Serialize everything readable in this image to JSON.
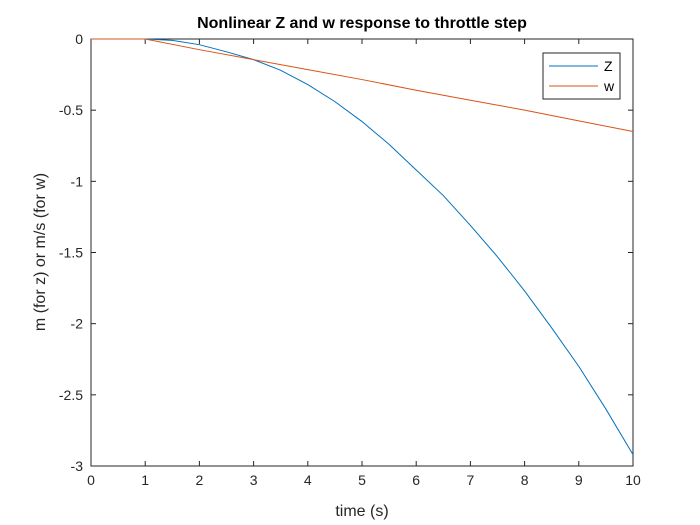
{
  "chart_data": {
    "type": "line",
    "title": "Nonlinear Z and w response to throttle step",
    "xlabel": "time (s)",
    "ylabel": "m (for z) or m/s (for w)",
    "xlim": [
      0,
      10
    ],
    "ylim": [
      -3,
      0
    ],
    "xticks": [
      0,
      1,
      2,
      3,
      4,
      5,
      6,
      7,
      8,
      9,
      10
    ],
    "xtick_labels": [
      "0",
      "1",
      "2",
      "3",
      "4",
      "5",
      "6",
      "7",
      "8",
      "9",
      "10"
    ],
    "yticks": [
      0,
      -0.5,
      -1,
      -1.5,
      -2,
      -2.5,
      -3
    ],
    "ytick_labels": [
      "0",
      "-0.5",
      "-1",
      "-1.5",
      "-2",
      "-2.5",
      "-3"
    ],
    "grid": false,
    "legend_position": "top-right",
    "series": [
      {
        "name": "Z",
        "color": "#0072BD",
        "x": [
          0,
          1,
          1.5,
          2,
          2.5,
          3,
          3.5,
          4,
          4.5,
          5,
          5.5,
          6,
          6.5,
          7,
          7.5,
          8,
          8.5,
          9,
          9.5,
          10
        ],
        "y": [
          0,
          0,
          -0.01,
          -0.04,
          -0.09,
          -0.145,
          -0.22,
          -0.32,
          -0.44,
          -0.58,
          -0.74,
          -0.92,
          -1.1,
          -1.31,
          -1.53,
          -1.77,
          -2.03,
          -2.3,
          -2.6,
          -2.92
        ]
      },
      {
        "name": "w",
        "color": "#D95319",
        "x": [
          0,
          1,
          2,
          3,
          4,
          5,
          6,
          7,
          8,
          9,
          10
        ],
        "y": [
          0,
          0,
          -0.075,
          -0.145,
          -0.215,
          -0.285,
          -0.36,
          -0.43,
          -0.5,
          -0.575,
          -0.65
        ]
      }
    ]
  }
}
